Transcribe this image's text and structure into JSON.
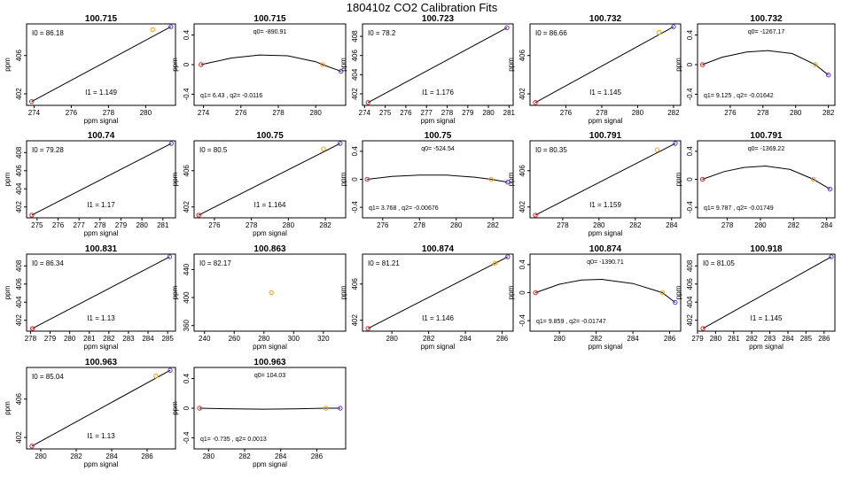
{
  "figure_title": "180410z   CO2 Calibration Fits",
  "colors": {
    "pt_red": "#dd2222",
    "pt_orange": "#ff9900",
    "pt_purple": "#6633dd",
    "axis": "#000000",
    "line": "#000000"
  },
  "chart_data": [
    {
      "type": "line",
      "variant": "linear",
      "title": "100.715",
      "xlabel": "ppm signal",
      "ylabel": "ppm",
      "xlim": [
        273.6,
        281.6
      ],
      "ylim": [
        400.8,
        409.3
      ],
      "xticks": [
        274,
        276,
        278,
        280
      ],
      "yticks": [
        402,
        406
      ],
      "points": [
        [
          273.87,
          401.2
        ],
        [
          280.37,
          408.7
        ],
        [
          281.35,
          409.0
        ]
      ],
      "line": [
        [
          273.87,
          401.2
        ],
        [
          281.35,
          409.0
        ]
      ],
      "label_a": "I0 =",
      "value_a": "86.18",
      "label_b": "I1 =",
      "value_b": "1.149"
    },
    {
      "type": "line",
      "variant": "resid",
      "title": "100.715",
      "xlabel": "",
      "ylabel": "ppm",
      "xlim": [
        273.5,
        281.6
      ],
      "ylim": [
        -0.55,
        0.55
      ],
      "xticks": [
        274,
        276,
        278,
        280
      ],
      "yticks": [
        -0.4,
        0.0,
        0.4
      ],
      "points": [
        [
          273.87,
          0.0
        ],
        [
          280.37,
          0.0
        ],
        [
          281.35,
          -0.09
        ]
      ],
      "curve": [
        [
          273.87,
          0.0
        ],
        [
          275.5,
          0.09
        ],
        [
          277.0,
          0.13
        ],
        [
          278.5,
          0.12
        ],
        [
          280.0,
          0.04
        ],
        [
          280.37,
          0.0
        ],
        [
          281.35,
          -0.09
        ]
      ],
      "label_a": "q0=",
      "value_a": "-890.91",
      "label_b": "q1= 6.43 , q2=",
      "value_b": "-0.0116"
    },
    {
      "type": "line",
      "variant": "linear",
      "title": "100.723",
      "xlabel": "ppm signal",
      "ylabel": "ppm",
      "xlim": [
        273.9,
        281.2
      ],
      "ylim": [
        400.8,
        409.3
      ],
      "xticks": [
        274,
        275,
        276,
        277,
        278,
        279,
        280,
        281
      ],
      "yticks": [
        402,
        404,
        406,
        408
      ],
      "points": [
        [
          274.17,
          401.1
        ],
        [
          280.9,
          408.9
        ]
      ],
      "line": [
        [
          274.17,
          401.1
        ],
        [
          280.9,
          408.9
        ]
      ],
      "label_a": "I0 =",
      "value_a": "78.2",
      "label_b": "I1 =",
      "value_b": "1.176"
    },
    {
      "type": "line",
      "variant": "linear",
      "title": "100.732",
      "xlabel": "ppm signal",
      "ylabel": "ppm",
      "xlim": [
        274.0,
        282.4
      ],
      "ylim": [
        400.8,
        409.3
      ],
      "xticks": [
        276,
        278,
        280,
        282
      ],
      "yticks": [
        402,
        406
      ],
      "points": [
        [
          274.3,
          401.1
        ],
        [
          281.2,
          408.4
        ],
        [
          282.0,
          409.0
        ]
      ],
      "line": [
        [
          274.3,
          401.1
        ],
        [
          282.0,
          409.0
        ]
      ],
      "label_a": "I0 =",
      "value_a": "86.66",
      "label_b": "I1 =",
      "value_b": "1.145"
    },
    {
      "type": "line",
      "variant": "resid",
      "title": "100.732",
      "xlabel": "",
      "ylabel": "ppm",
      "xlim": [
        274.0,
        282.4
      ],
      "ylim": [
        -0.55,
        0.55
      ],
      "xticks": [
        276,
        278,
        280,
        282
      ],
      "yticks": [
        -0.4,
        0.0,
        0.4
      ],
      "points": [
        [
          274.3,
          0.0
        ],
        [
          281.2,
          0.0
        ],
        [
          282.0,
          -0.14
        ]
      ],
      "curve": [
        [
          274.3,
          0.0
        ],
        [
          275.5,
          0.1
        ],
        [
          277.0,
          0.17
        ],
        [
          278.3,
          0.19
        ],
        [
          279.8,
          0.15
        ],
        [
          281.2,
          0.0
        ],
        [
          282.0,
          -0.14
        ]
      ],
      "label_a": "q0=",
      "value_a": "-1267.17",
      "label_b": "q1= 9.125 , q2=",
      "value_b": "-0.01642"
    },
    {
      "type": "line",
      "variant": "linear",
      "title": "100.74",
      "xlabel": "ppm signal",
      "ylabel": "ppm",
      "xlim": [
        274.5,
        281.6
      ],
      "ylim": [
        400.8,
        409.3
      ],
      "xticks": [
        275,
        276,
        277,
        278,
        279,
        280,
        281
      ],
      "yticks": [
        402,
        404,
        406,
        408
      ],
      "points": [
        [
          274.75,
          401.1
        ],
        [
          281.4,
          409.0
        ]
      ],
      "line": [
        [
          274.75,
          401.1
        ],
        [
          281.4,
          409.0
        ]
      ],
      "label_a": "I0 =",
      "value_a": "79.28",
      "label_b": "I1 =",
      "value_b": "1.17"
    },
    {
      "type": "line",
      "variant": "linear",
      "title": "100.75",
      "xlabel": "ppm signal",
      "ylabel": "ppm",
      "xlim": [
        274.9,
        283.1
      ],
      "ylim": [
        400.8,
        409.3
      ],
      "xticks": [
        276,
        278,
        280,
        282
      ],
      "yticks": [
        402,
        406
      ],
      "points": [
        [
          275.15,
          401.1
        ],
        [
          281.9,
          408.4
        ],
        [
          282.8,
          409.0
        ]
      ],
      "line": [
        [
          275.15,
          401.1
        ],
        [
          282.8,
          409.0
        ]
      ],
      "label_a": "I0 =",
      "value_a": "80.5",
      "label_b": "I1 =",
      "value_b": "1.164"
    },
    {
      "type": "line",
      "variant": "resid",
      "title": "100.75",
      "xlabel": "",
      "ylabel": "ppm",
      "xlim": [
        274.9,
        283.1
      ],
      "ylim": [
        -0.55,
        0.55
      ],
      "xticks": [
        276,
        278,
        280,
        282
      ],
      "yticks": [
        -0.4,
        0.0,
        0.4
      ],
      "points": [
        [
          275.15,
          0.0
        ],
        [
          281.9,
          0.0
        ],
        [
          282.8,
          -0.04
        ]
      ],
      "curve": [
        [
          275.15,
          0.0
        ],
        [
          276.5,
          0.04
        ],
        [
          278.0,
          0.06
        ],
        [
          279.5,
          0.06
        ],
        [
          281.0,
          0.03
        ],
        [
          281.9,
          0.0
        ],
        [
          282.8,
          -0.04
        ]
      ],
      "label_a": "q0=",
      "value_a": "-524.54",
      "label_b": "q1= 3.768 , q2=",
      "value_b": "-0.00676"
    },
    {
      "type": "line",
      "variant": "linear",
      "title": "100.791",
      "xlabel": "ppm signal",
      "ylabel": "ppm",
      "xlim": [
        276.2,
        284.5
      ],
      "ylim": [
        400.8,
        409.3
      ],
      "xticks": [
        278,
        280,
        282,
        284
      ],
      "yticks": [
        402,
        406
      ],
      "points": [
        [
          276.5,
          401.1
        ],
        [
          283.2,
          408.3
        ],
        [
          284.2,
          409.0
        ]
      ],
      "line": [
        [
          276.5,
          401.1
        ],
        [
          284.2,
          409.0
        ]
      ],
      "label_a": "I0 =",
      "value_a": "80.35",
      "label_b": "I1 =",
      "value_b": "1.159"
    },
    {
      "type": "line",
      "variant": "resid",
      "title": "100.791",
      "xlabel": "",
      "ylabel": "ppm",
      "xlim": [
        276.2,
        284.5
      ],
      "ylim": [
        -0.55,
        0.55
      ],
      "xticks": [
        278,
        280,
        282,
        284
      ],
      "yticks": [
        -0.4,
        0.0,
        0.4
      ],
      "points": [
        [
          276.5,
          0.0
        ],
        [
          283.2,
          0.0
        ],
        [
          284.2,
          -0.14
        ]
      ],
      "curve": [
        [
          276.5,
          0.0
        ],
        [
          277.8,
          0.11
        ],
        [
          279.0,
          0.17
        ],
        [
          280.3,
          0.19
        ],
        [
          281.8,
          0.14
        ],
        [
          283.2,
          0.0
        ],
        [
          284.2,
          -0.14
        ]
      ],
      "label_a": "q0=",
      "value_a": "-1369.22",
      "label_b": "q1= 9.787 , q2=",
      "value_b": "-0.01749"
    },
    {
      "type": "line",
      "variant": "linear",
      "title": "100.831",
      "xlabel": "ppm signal",
      "ylabel": "ppm",
      "xlim": [
        277.8,
        285.4
      ],
      "ylim": [
        400.8,
        409.3
      ],
      "xticks": [
        278,
        279,
        280,
        281,
        282,
        283,
        284,
        285
      ],
      "yticks": [
        402,
        404,
        406,
        408
      ],
      "points": [
        [
          278.1,
          401.1
        ],
        [
          285.1,
          409.0
        ]
      ],
      "line": [
        [
          278.1,
          401.1
        ],
        [
          285.1,
          409.0
        ]
      ],
      "label_a": "I0 =",
      "value_a": "86.34",
      "label_b": "I1 =",
      "value_b": "1.13"
    },
    {
      "type": "line",
      "variant": "single",
      "title": "100.863",
      "xlabel": "ppm signal",
      "ylabel": "ppm",
      "xlim": [
        233,
        335
      ],
      "ylim": [
        352,
        462
      ],
      "xticks": [
        240,
        260,
        280,
        300,
        320
      ],
      "yticks": [
        360,
        400,
        440
      ],
      "points": [
        [
          285,
          407
        ]
      ],
      "label_a": "I0 =",
      "value_a": "82.17"
    },
    {
      "type": "line",
      "variant": "linear",
      "title": "100.874",
      "xlabel": "ppm signal",
      "ylabel": "ppm",
      "xlim": [
        278.4,
        286.6
      ],
      "ylim": [
        400.8,
        409.3
      ],
      "xticks": [
        280,
        282,
        284,
        286
      ],
      "yticks": [
        402,
        406
      ],
      "points": [
        [
          278.7,
          401.1
        ],
        [
          285.6,
          408.3
        ],
        [
          286.3,
          409.0
        ]
      ],
      "line": [
        [
          278.7,
          401.1
        ],
        [
          286.3,
          409.0
        ]
      ],
      "label_a": "I0 =",
      "value_a": "81.21",
      "label_b": "I1 =",
      "value_b": "1.146"
    },
    {
      "type": "line",
      "variant": "resid",
      "title": "100.874",
      "xlabel": "ppm signal",
      "ylabel": "ppm",
      "xlim": [
        278.4,
        286.6
      ],
      "ylim": [
        -0.55,
        0.55
      ],
      "xticks": [
        280,
        282,
        284,
        286
      ],
      "yticks": [
        -0.4,
        0.0,
        0.4
      ],
      "points": [
        [
          278.7,
          0.0
        ],
        [
          285.6,
          0.0
        ],
        [
          286.3,
          -0.14
        ]
      ],
      "curve": [
        [
          278.7,
          0.0
        ],
        [
          280.0,
          0.12
        ],
        [
          281.2,
          0.18
        ],
        [
          282.3,
          0.19
        ],
        [
          284.0,
          0.13
        ],
        [
          285.6,
          0.0
        ],
        [
          286.3,
          -0.14
        ]
      ],
      "label_a": "q0=",
      "value_a": "-1390.71",
      "label_b": "q1= 9.859 , q2=",
      "value_b": "-0.01747"
    },
    {
      "type": "line",
      "variant": "linear",
      "title": "100.918",
      "xlabel": "ppm signal",
      "ylabel": "ppm",
      "xlim": [
        279.0,
        286.6
      ],
      "ylim": [
        400.8,
        409.3
      ],
      "xticks": [
        279,
        280,
        281,
        282,
        283,
        284,
        285,
        286
      ],
      "yticks": [
        402,
        404,
        406,
        408
      ],
      "points": [
        [
          279.3,
          401.1
        ],
        [
          286.4,
          409.0
        ]
      ],
      "line": [
        [
          279.3,
          401.1
        ],
        [
          286.4,
          409.0
        ]
      ],
      "label_a": "I0 =",
      "value_a": "81.05",
      "label_b": "I1 =",
      "value_b": "1.145"
    },
    {
      "type": "line",
      "variant": "linear",
      "title": "100.963",
      "xlabel": "ppm signal",
      "ylabel": "ppm",
      "xlim": [
        279.2,
        287.6
      ],
      "ylim": [
        400.8,
        409.3
      ],
      "xticks": [
        280,
        282,
        284,
        286
      ],
      "yticks": [
        402,
        406
      ],
      "points": [
        [
          279.5,
          401.1
        ],
        [
          286.5,
          408.4
        ],
        [
          287.3,
          409.0
        ]
      ],
      "line": [
        [
          279.5,
          401.1
        ],
        [
          287.3,
          409.0
        ]
      ],
      "label_a": "I0 =",
      "value_a": "85.04",
      "label_b": "I1 =",
      "value_b": "1.13"
    },
    {
      "type": "line",
      "variant": "resid",
      "title": "100.963",
      "xlabel": "ppm signal",
      "ylabel": "ppm",
      "xlim": [
        279.2,
        287.6
      ],
      "ylim": [
        -0.55,
        0.55
      ],
      "xticks": [
        280,
        282,
        284,
        286
      ],
      "yticks": [
        -0.4,
        0.0,
        0.4
      ],
      "points": [
        [
          279.5,
          0.0
        ],
        [
          286.5,
          0.0
        ],
        [
          287.3,
          0.0
        ]
      ],
      "curve": [
        [
          279.5,
          0.0
        ],
        [
          281.5,
          -0.01
        ],
        [
          283.0,
          -0.013
        ],
        [
          284.8,
          -0.01
        ],
        [
          286.5,
          0.0
        ],
        [
          287.3,
          0.0
        ]
      ],
      "label_a": "q0=",
      "value_a": "104.03",
      "label_b": "q1= -0.735 , q2=",
      "value_b": "0.0013"
    }
  ]
}
